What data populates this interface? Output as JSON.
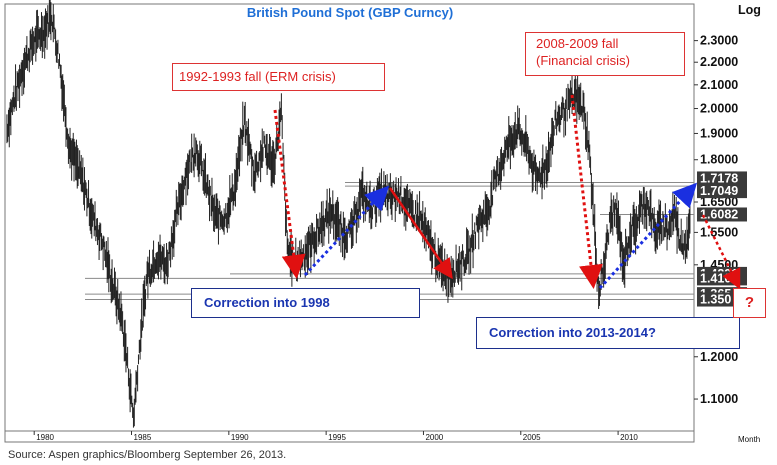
{
  "chart_data": {
    "type": "line",
    "title": "British Pound Spot (GBP Curncy)",
    "yaxis_label": "Log",
    "xaxis_label": "Month",
    "y_scale": "log",
    "ylim": [
      1.03,
      2.48
    ],
    "xlim": [
      1978.5,
      2013.9
    ],
    "y_ticks": [
      "2.3000",
      "2.2000",
      "2.1000",
      "2.0000",
      "1.9000",
      "1.8000",
      "1.6500",
      "1.5500",
      "1.4500",
      "1.2000",
      "1.1000"
    ],
    "x_ticks": [
      "1980",
      "1985",
      "1990",
      "1995",
      "2000",
      "2005",
      "2010"
    ],
    "series": [
      {
        "points": [
          [
            1978.6,
            1.92
          ],
          [
            1979.0,
            2.05
          ],
          [
            1979.5,
            2.2
          ],
          [
            1980.0,
            2.3
          ],
          [
            1980.5,
            2.35
          ],
          [
            1980.9,
            2.43
          ],
          [
            1981.3,
            2.2
          ],
          [
            1981.8,
            1.85
          ],
          [
            1982.5,
            1.72
          ],
          [
            1983.0,
            1.6
          ],
          [
            1983.5,
            1.52
          ],
          [
            1984.0,
            1.4
          ],
          [
            1984.5,
            1.3
          ],
          [
            1984.8,
            1.18
          ],
          [
            1985.1,
            1.06
          ],
          [
            1985.4,
            1.22
          ],
          [
            1985.8,
            1.42
          ],
          [
            1986.3,
            1.48
          ],
          [
            1986.8,
            1.45
          ],
          [
            1987.3,
            1.6
          ],
          [
            1987.8,
            1.75
          ],
          [
            1988.3,
            1.85
          ],
          [
            1988.8,
            1.72
          ],
          [
            1989.3,
            1.6
          ],
          [
            1989.8,
            1.6
          ],
          [
            1990.3,
            1.7
          ],
          [
            1990.8,
            1.95
          ],
          [
            1991.3,
            1.75
          ],
          [
            1991.8,
            1.85
          ],
          [
            1992.3,
            1.78
          ],
          [
            1992.7,
            1.98
          ],
          [
            1993.0,
            1.5
          ],
          [
            1993.4,
            1.45
          ],
          [
            1993.8,
            1.48
          ],
          [
            1994.3,
            1.52
          ],
          [
            1994.8,
            1.58
          ],
          [
            1995.3,
            1.62
          ],
          [
            1995.8,
            1.55
          ],
          [
            1996.3,
            1.55
          ],
          [
            1996.8,
            1.68
          ],
          [
            1997.3,
            1.63
          ],
          [
            1997.8,
            1.68
          ],
          [
            1998.3,
            1.66
          ],
          [
            1998.8,
            1.68
          ],
          [
            1999.3,
            1.62
          ],
          [
            1999.8,
            1.6
          ],
          [
            2000.3,
            1.52
          ],
          [
            2000.8,
            1.45
          ],
          [
            2001.3,
            1.42
          ],
          [
            2001.8,
            1.45
          ],
          [
            2002.3,
            1.48
          ],
          [
            2002.8,
            1.58
          ],
          [
            2003.3,
            1.62
          ],
          [
            2003.8,
            1.75
          ],
          [
            2004.3,
            1.85
          ],
          [
            2004.8,
            1.92
          ],
          [
            2005.3,
            1.85
          ],
          [
            2005.8,
            1.73
          ],
          [
            2006.3,
            1.78
          ],
          [
            2006.8,
            1.95
          ],
          [
            2007.3,
            2.0
          ],
          [
            2007.8,
            2.05
          ],
          [
            2008.2,
            2.0
          ],
          [
            2008.5,
            1.85
          ],
          [
            2008.8,
            1.55
          ],
          [
            2009.0,
            1.37
          ],
          [
            2009.3,
            1.45
          ],
          [
            2009.6,
            1.6
          ],
          [
            2009.9,
            1.62
          ],
          [
            2010.3,
            1.45
          ],
          [
            2010.6,
            1.55
          ],
          [
            2010.9,
            1.57
          ],
          [
            2011.3,
            1.65
          ],
          [
            2011.6,
            1.63
          ],
          [
            2011.9,
            1.55
          ],
          [
            2012.3,
            1.58
          ],
          [
            2012.6,
            1.56
          ],
          [
            2012.9,
            1.62
          ],
          [
            2013.2,
            1.52
          ],
          [
            2013.5,
            1.52
          ],
          [
            2013.73,
            1.6082
          ]
        ]
      }
    ],
    "horizontal_levels": [
      "1.7178",
      "1.7049",
      "1.6082",
      "1.4231",
      "1.4100",
      "1.3650",
      "1.3500"
    ],
    "level_labels": [
      "1.7178",
      "1.7049",
      "1.6082",
      "1.4231",
      "1.410",
      "1.365",
      "1.350"
    ],
    "annotations": {
      "crisis_1992": "1992-1993 fall (ERM crisis)",
      "crisis_2008_line1": "2008-2009 fall",
      "crisis_2008_line2": "(Financial crisis)",
      "correction_1998": "Correction into 1998",
      "correction_2013": "Correction into 2013-2014?",
      "question": "?"
    },
    "grid": false,
    "colors": {
      "price": "#222222",
      "fall_arrow": "#e01010",
      "rise_arrow": "#1a2fe0",
      "title": "#1f6fd6",
      "label_bg": "#3a3a3a"
    }
  },
  "source": "Source: Aspen graphics/Bloomberg September 26, 2013."
}
